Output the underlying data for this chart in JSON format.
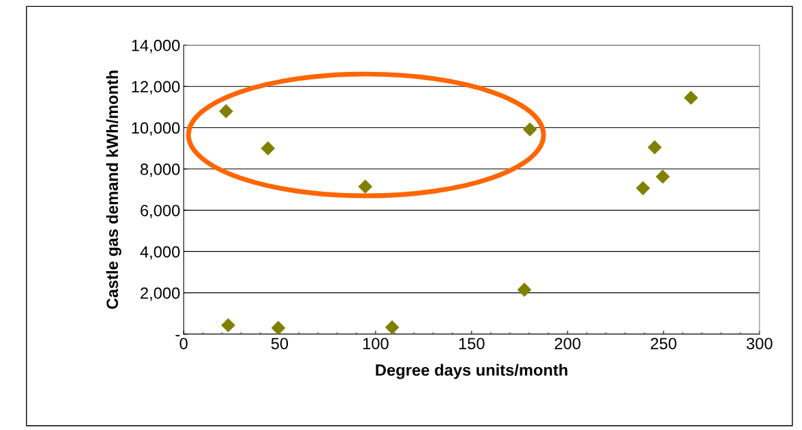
{
  "chart_data": {
    "type": "scatter",
    "xlabel": "Degree days units/month",
    "ylabel": "Castle gas demand kWh/month",
    "x": [
      22.1,
      43.9,
      94.6,
      180.4,
      245.4,
      264.3,
      239.3,
      249.6,
      177.5,
      23.2,
      49.3,
      108.6
    ],
    "values": [
      10800,
      9000,
      7150,
      9920,
      9050,
      11450,
      7070,
      7630,
      2150,
      430,
      300,
      330
    ],
    "color": "#808000",
    "marker": "diamond",
    "xlim": [
      0,
      300
    ],
    "xticks": [
      0,
      50,
      100,
      150,
      200,
      250,
      300
    ],
    "ylim": [
      0,
      14000
    ],
    "yticks": [
      {
        "value": 0,
        "label": "-"
      },
      {
        "value": 2000,
        "label": "2,000"
      },
      {
        "value": 4000,
        "label": "4,000"
      },
      {
        "value": 6000,
        "label": "6,000"
      },
      {
        "value": 8000,
        "label": "8,000"
      },
      {
        "value": 10000,
        "label": "10,000"
      },
      {
        "value": 12000,
        "label": "12,000"
      },
      {
        "value": 14000,
        "label": "14,000"
      }
    ],
    "grid": "y"
  }
}
